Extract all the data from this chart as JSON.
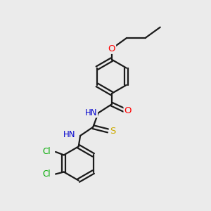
{
  "bg_color": "#ebebeb",
  "bond_color": "#1a1a1a",
  "line_width": 1.6,
  "atom_colors": {
    "O": "#ff0000",
    "N": "#0000cd",
    "S": "#ccaa00",
    "Cl": "#00aa00",
    "H": "#777777",
    "C": "#1a1a1a"
  },
  "font_size": 8.5
}
